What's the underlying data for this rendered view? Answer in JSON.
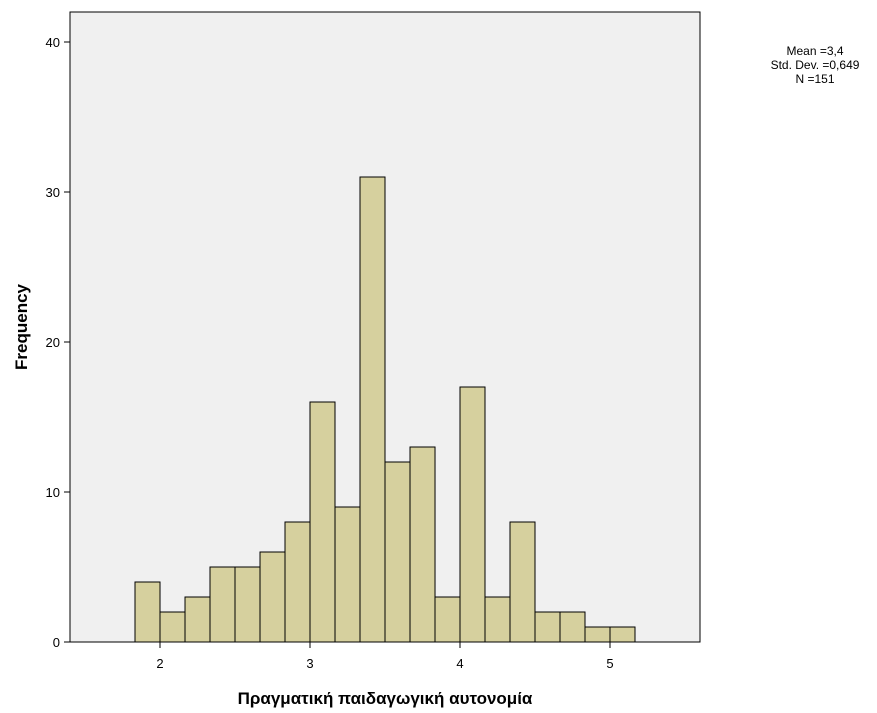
{
  "chart_data": {
    "type": "bar",
    "subtype": "histogram",
    "xlabel": "Πραγματική παιδαγωγική αυτονομία",
    "ylabel": "Frequency",
    "xlim": [
      1.4,
      5.6
    ],
    "ylim": [
      0,
      42
    ],
    "x_ticks": [
      2,
      3,
      4,
      5
    ],
    "x_tick_labels": [
      "2",
      "3",
      "4",
      "5"
    ],
    "y_ticks": [
      0,
      10,
      20,
      30,
      40
    ],
    "y_tick_labels": [
      "0",
      "10",
      "20",
      "30",
      "40"
    ],
    "bin_width": 0.1667,
    "bin_starts": [
      1.8333,
      2.0,
      2.1667,
      2.3333,
      2.5,
      2.6667,
      2.8333,
      3.0,
      3.1667,
      3.3333,
      3.5,
      3.6667,
      3.8333,
      4.0,
      4.1667,
      4.3333,
      4.5,
      4.6667,
      4.8333,
      5.0
    ],
    "values": [
      4,
      2,
      3,
      5,
      5,
      6,
      8,
      16,
      9,
      31,
      12,
      13,
      3,
      17,
      3,
      8,
      2,
      2,
      1,
      1
    ],
    "grid": false,
    "stats": {
      "mean_line": "Mean =3,4",
      "std_line": "Std. Dev. =0,649",
      "n_line": "N =151"
    },
    "colors": {
      "bar_fill": "#d6d09e",
      "bar_stroke": "#000000",
      "plot_background": "#f0f0f0"
    }
  }
}
